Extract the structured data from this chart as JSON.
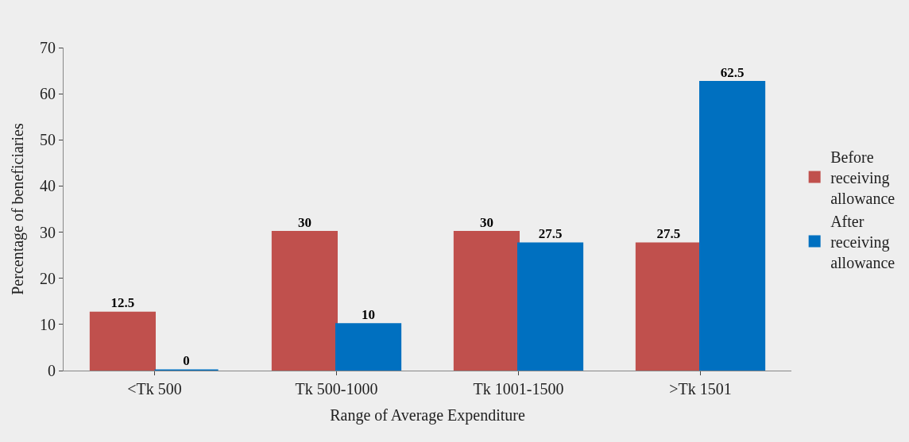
{
  "chart_data": {
    "type": "bar",
    "xlabel": "Range of Average Expenditure",
    "ylabel": "Percentage of beneficiaries",
    "categories": [
      "<Tk 500",
      "Tk 500-1000",
      "Tk 1001-1500",
      ">Tk 1501"
    ],
    "series": [
      {
        "name": "Before receiving allowance",
        "color": "#c0504d",
        "values": [
          12.5,
          30,
          30,
          27.5
        ]
      },
      {
        "name": "After receiving allowance",
        "color": "#0070c0",
        "values": [
          0,
          10,
          27.5,
          62.5
        ]
      }
    ],
    "ylim": [
      0,
      70
    ],
    "yticks": [
      0,
      10,
      20,
      30,
      40,
      50,
      60,
      70
    ],
    "grid": false,
    "legend": "right",
    "data_labels": true
  }
}
